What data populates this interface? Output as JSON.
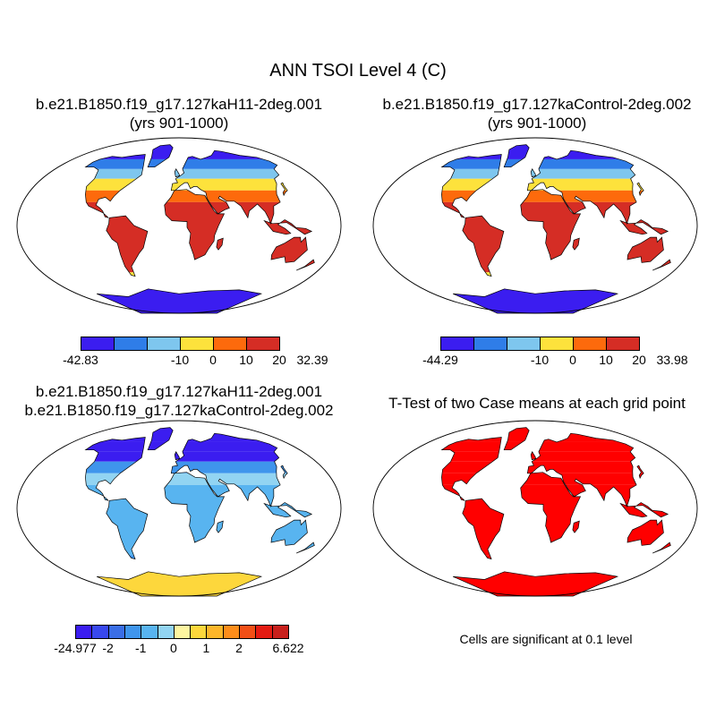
{
  "title": "ANN TSOI Level 4 (C)",
  "panels": [
    {
      "id": "case1",
      "title_lines": [
        "b.e21.B1850.f19_g17.127kaH11-2deg.001",
        "(yrs 901-1000)"
      ],
      "colorbar": {
        "colors": [
          "#3b1df0",
          "#2f7de8",
          "#7ec6ee",
          "#fde23c",
          "#fd6a0c",
          "#d52d25"
        ],
        "labels": [
          "-42.83",
          "-10",
          "0",
          "10",
          "20",
          "32.39"
        ],
        "label_positions": [
          0,
          3,
          4,
          5,
          6,
          7
        ]
      },
      "zones": {
        "north": "#3b1df0",
        "subarctic": "#2f7de8",
        "boreal": "#7ec6ee",
        "temperate": "#fde23c",
        "warm": "#fd6a0c",
        "tropics": "#d52d25",
        "antarctic": "#3b1df0"
      }
    },
    {
      "id": "case2",
      "title_lines": [
        "b.e21.B1850.f19_g17.127kaControl-2deg.002",
        "(yrs 901-1000)"
      ],
      "colorbar": {
        "colors": [
          "#3b1df0",
          "#2f7de8",
          "#7ec6ee",
          "#fde23c",
          "#fd6a0c",
          "#d52d25"
        ],
        "labels": [
          "-44.29",
          "-10",
          "0",
          "10",
          "20",
          "33.98"
        ],
        "label_positions": [
          0,
          3,
          4,
          5,
          6,
          7
        ]
      },
      "zones": {
        "north": "#3b1df0",
        "subarctic": "#2f7de8",
        "boreal": "#7ec6ee",
        "temperate": "#fde23c",
        "warm": "#fd6a0c",
        "tropics": "#d52d25",
        "antarctic": "#3b1df0"
      }
    },
    {
      "id": "difference",
      "title_lines": [
        "b.e21.B1850.f19_g17.127kaH11-2deg.001",
        "b.e21.B1850.f19_g17.127kaControl-2deg.002"
      ],
      "colorbar": {
        "colors": [
          "#3b1df0",
          "#3848ee",
          "#3a6ee6",
          "#3f95ec",
          "#58b4f0",
          "#92d4f2",
          "#fdf5a0",
          "#fdd73c",
          "#fdb62a",
          "#fd8d1a",
          "#f24f16",
          "#e41b12",
          "#c8201c"
        ],
        "labels": [
          "-24.977",
          "-2",
          "-1",
          "0",
          "1",
          "2",
          "6.622"
        ],
        "label_positions": [
          0,
          2,
          4,
          6,
          8,
          10,
          13
        ]
      },
      "zones": {
        "north": "#3b1df0",
        "subarctic": "#3b1df0",
        "boreal": "#3b1df0",
        "temperate": "#3f95ec",
        "warm": "#92d4f2",
        "tropics": "#58b4f0",
        "antarctic": "#fdd73c"
      }
    },
    {
      "id": "ttest",
      "title_lines": [
        "T-Test of two Case means at each grid point"
      ],
      "note": "Cells are significant at 0.1 level",
      "zones": {
        "north": "#ff0000",
        "subarctic": "#ff0000",
        "boreal": "#ff0000",
        "temperate": "#ff0000",
        "warm": "#ff0000",
        "tropics": "#ff0000",
        "antarctic": "#ff0000"
      }
    }
  ]
}
